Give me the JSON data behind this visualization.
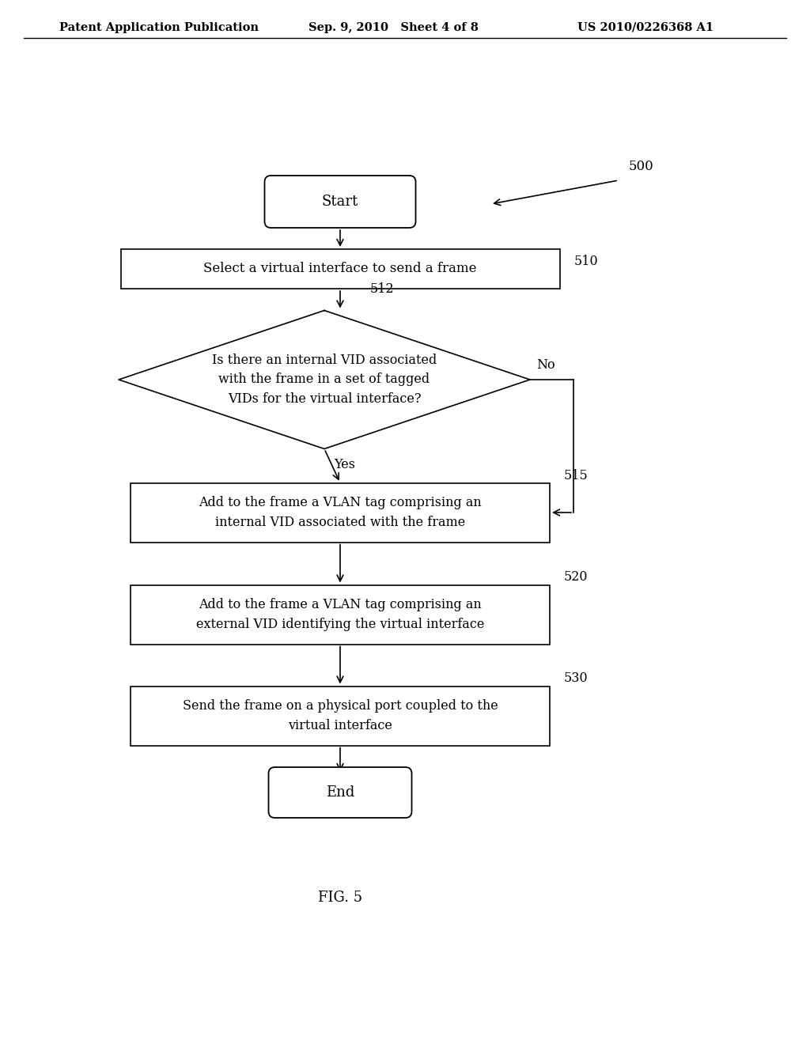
{
  "header_left": "Patent Application Publication",
  "header_mid": "Sep. 9, 2010   Sheet 4 of 8",
  "header_right": "US 2010/0226368 A1",
  "fig_label": "FIG. 5",
  "background_color": "#ffffff",
  "text_color": "#000000",
  "start_label": "Start",
  "end_label": "End",
  "box510_label": "Select a virtual interface to send a frame",
  "box510_ref": "510",
  "diamond512_line1": "Is there an internal VID associated",
  "diamond512_line2": "with the frame in a set of tagged",
  "diamond512_line3": "VIDs for the virtual interface?",
  "diamond512_ref": "512",
  "box515_line1": "Add to the frame a VLAN tag comprising an",
  "box515_line2": "internal VID associated with the frame",
  "box515_ref": "515",
  "box520_line1": "Add to the frame a VLAN tag comprising an",
  "box520_line2": "external VID identifying the virtual interface",
  "box520_ref": "520",
  "box530_line1": "Send the frame on a physical port coupled to the",
  "box530_line2": "virtual interface",
  "box530_ref": "530",
  "label_500": "500",
  "yes_label": "Yes",
  "no_label": "No"
}
